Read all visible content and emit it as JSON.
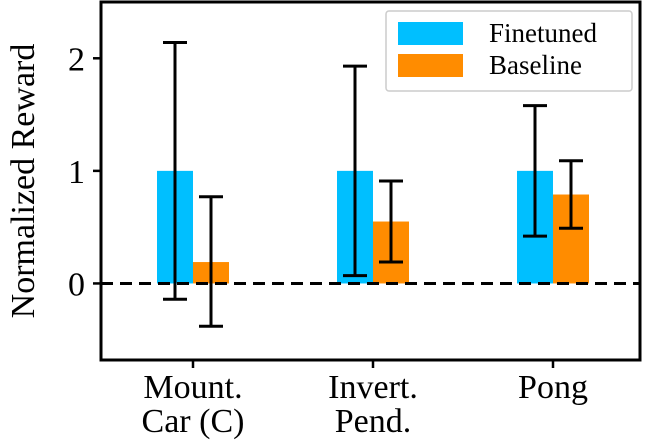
{
  "chart_data": {
    "type": "bar",
    "ylabel": "Normalized Reward",
    "xlabel": "",
    "ylim": [
      -0.68,
      2.5
    ],
    "yticks": [
      0,
      1,
      2
    ],
    "categories": [
      {
        "lines": [
          "Mount.",
          "Car (C)"
        ]
      },
      {
        "lines": [
          "Invert.",
          "Pend."
        ]
      },
      {
        "lines": [
          "Pong"
        ]
      }
    ],
    "series": [
      {
        "name": "Finetuned",
        "color": "#00bfff",
        "values": [
          1.0,
          1.0,
          1.0
        ],
        "err_low": [
          -0.14,
          0.07,
          0.42
        ],
        "err_high": [
          2.14,
          1.93,
          1.58
        ]
      },
      {
        "name": "Baseline",
        "color": "#ff8c00",
        "values": [
          0.19,
          0.55,
          0.79
        ],
        "err_low": [
          -0.38,
          0.19,
          0.49
        ],
        "err_high": [
          0.77,
          0.91,
          1.09
        ]
      }
    ],
    "reference_line": {
      "y": 0,
      "style": "dashed"
    },
    "legend_position": "top-right",
    "grid": false
  }
}
